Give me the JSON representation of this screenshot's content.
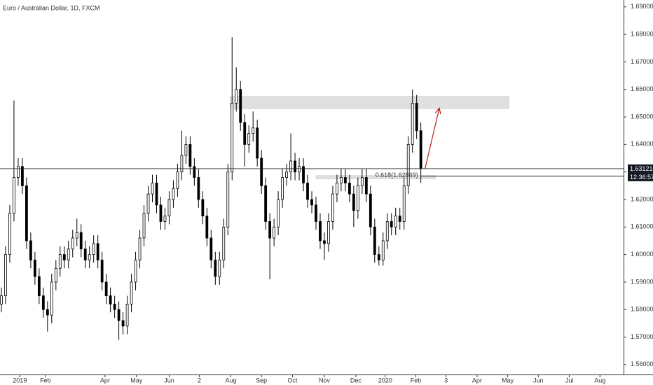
{
  "chart_data": {
    "type": "candlestick",
    "title": "Euro / Australian Dollar, 1D, FXCM",
    "ylim": [
      1.5564,
      1.6925
    ],
    "yticks": [
      {
        "value": 1.56,
        "label": "1.56000"
      },
      {
        "value": 1.57,
        "label": "1.57000"
      },
      {
        "value": 1.58,
        "label": "1.58000"
      },
      {
        "value": 1.59,
        "label": "1.59000"
      },
      {
        "value": 1.6,
        "label": "1.60000"
      },
      {
        "value": 1.61,
        "label": "1.61000"
      },
      {
        "value": 1.62,
        "label": "1.62000"
      },
      {
        "value": 1.63,
        "label": "1.63000"
      },
      {
        "value": 1.64,
        "label": "1.64000"
      },
      {
        "value": 1.65,
        "label": "1.65000"
      },
      {
        "value": 1.66,
        "label": "1.66000"
      },
      {
        "value": 1.67,
        "label": "1.67000"
      },
      {
        "value": 1.68,
        "label": "1.68000"
      },
      {
        "value": 1.69,
        "label": "1.69000"
      }
    ],
    "xlim": [
      -0.33,
      148.33
    ],
    "xticks": [
      {
        "value": 4.4,
        "label": "2019"
      },
      {
        "value": 10.5,
        "label": "Feb"
      },
      {
        "value": 24.7,
        "label": "Apr"
      },
      {
        "value": 32.2,
        "label": "May"
      },
      {
        "value": 40,
        "label": "Jun"
      },
      {
        "value": 47.2,
        "label": "2"
      },
      {
        "value": 54.7,
        "label": "Aug"
      },
      {
        "value": 62,
        "label": "Sep"
      },
      {
        "value": 69.4,
        "label": "Oct"
      },
      {
        "value": 77,
        "label": "Nov"
      },
      {
        "value": 84.5,
        "label": "Dec"
      },
      {
        "value": 91.5,
        "label": "2020"
      },
      {
        "value": 98.8,
        "label": "Feb"
      },
      {
        "value": 106,
        "label": "3"
      },
      {
        "value": 113.4,
        "label": "Apr"
      },
      {
        "value": 120.7,
        "label": "May"
      },
      {
        "value": 128,
        "label": "Jun"
      },
      {
        "value": 135.4,
        "label": "Jul"
      },
      {
        "value": 142.7,
        "label": "Aug"
      }
    ],
    "series": {
      "open": [
        1.582,
        1.585,
        1.6,
        1.615,
        1.628,
        1.632,
        1.625,
        1.605,
        1.598,
        1.592,
        1.585,
        1.58,
        1.578,
        1.59,
        1.595,
        1.6,
        1.598,
        1.602,
        1.606,
        1.608,
        1.602,
        1.598,
        1.6,
        1.604,
        1.598,
        1.59,
        1.585,
        1.582,
        1.58,
        1.576,
        1.574,
        1.582,
        1.59,
        1.598,
        1.606,
        1.615,
        1.622,
        1.626,
        1.618,
        1.612,
        1.614,
        1.62,
        1.624,
        1.63,
        1.636,
        1.64,
        1.632,
        1.628,
        1.62,
        1.614,
        1.606,
        1.598,
        1.592,
        1.598,
        1.61,
        1.63,
        1.655,
        1.66,
        1.648,
        1.64,
        1.644,
        1.646,
        1.635,
        1.625,
        1.612,
        1.606,
        1.61,
        1.62,
        1.628,
        1.63,
        1.634,
        1.63,
        1.632,
        1.626,
        1.62,
        1.618,
        1.612,
        1.605,
        1.604,
        1.612,
        1.622,
        1.626,
        1.628,
        1.626,
        1.622,
        1.616,
        1.625,
        1.628,
        1.622,
        1.61,
        1.6,
        1.598,
        1.605,
        1.612,
        1.61,
        1.614,
        1.612,
        1.625,
        1.64,
        1.655,
        1.645
      ],
      "high": [
        1.588,
        1.603,
        1.618,
        1.656,
        1.635,
        1.635,
        1.628,
        1.608,
        1.601,
        1.595,
        1.588,
        1.583,
        1.593,
        1.598,
        1.603,
        1.603,
        1.605,
        1.609,
        1.613,
        1.611,
        1.605,
        1.603,
        1.607,
        1.607,
        1.601,
        1.593,
        1.588,
        1.585,
        1.583,
        1.579,
        1.585,
        1.593,
        1.601,
        1.609,
        1.618,
        1.625,
        1.629,
        1.629,
        1.621,
        1.617,
        1.623,
        1.627,
        1.633,
        1.645,
        1.643,
        1.643,
        1.635,
        1.631,
        1.623,
        1.617,
        1.609,
        1.601,
        1.601,
        1.613,
        1.633,
        1.679,
        1.668,
        1.663,
        1.651,
        1.647,
        1.652,
        1.649,
        1.638,
        1.628,
        1.615,
        1.613,
        1.623,
        1.631,
        1.633,
        1.644,
        1.637,
        1.635,
        1.635,
        1.629,
        1.623,
        1.621,
        1.615,
        1.608,
        1.615,
        1.625,
        1.629,
        1.631,
        1.631,
        1.629,
        1.625,
        1.628,
        1.631,
        1.631,
        1.625,
        1.613,
        1.603,
        1.608,
        1.615,
        1.615,
        1.617,
        1.617,
        1.628,
        1.643,
        1.66,
        1.658,
        1.648
      ],
      "low": [
        1.579,
        1.582,
        1.597,
        1.612,
        1.625,
        1.622,
        1.602,
        1.595,
        1.589,
        1.582,
        1.577,
        1.572,
        1.575,
        1.587,
        1.592,
        1.595,
        1.595,
        1.599,
        1.603,
        1.599,
        1.595,
        1.595,
        1.597,
        1.595,
        1.587,
        1.582,
        1.579,
        1.577,
        1.569,
        1.571,
        1.571,
        1.579,
        1.587,
        1.595,
        1.603,
        1.612,
        1.619,
        1.615,
        1.609,
        1.609,
        1.611,
        1.617,
        1.621,
        1.627,
        1.633,
        1.629,
        1.625,
        1.617,
        1.611,
        1.603,
        1.595,
        1.589,
        1.589,
        1.595,
        1.607,
        1.627,
        1.652,
        1.645,
        1.632,
        1.637,
        1.641,
        1.632,
        1.622,
        1.609,
        1.591,
        1.603,
        1.607,
        1.617,
        1.625,
        1.627,
        1.627,
        1.627,
        1.623,
        1.617,
        1.615,
        1.609,
        1.602,
        1.598,
        1.601,
        1.609,
        1.619,
        1.623,
        1.623,
        1.619,
        1.61,
        1.613,
        1.622,
        1.619,
        1.607,
        1.597,
        1.596,
        1.596,
        1.602,
        1.607,
        1.607,
        1.609,
        1.609,
        1.622,
        1.637,
        1.642,
        1.626
      ],
      "close": [
        1.585,
        1.6,
        1.615,
        1.628,
        1.632,
        1.625,
        1.605,
        1.598,
        1.592,
        1.585,
        1.58,
        1.578,
        1.59,
        1.595,
        1.6,
        1.598,
        1.602,
        1.606,
        1.608,
        1.602,
        1.598,
        1.6,
        1.604,
        1.598,
        1.59,
        1.585,
        1.582,
        1.58,
        1.576,
        1.574,
        1.582,
        1.59,
        1.598,
        1.606,
        1.615,
        1.622,
        1.626,
        1.618,
        1.612,
        1.614,
        1.62,
        1.624,
        1.63,
        1.636,
        1.64,
        1.632,
        1.628,
        1.62,
        1.614,
        1.606,
        1.598,
        1.592,
        1.598,
        1.61,
        1.63,
        1.655,
        1.66,
        1.648,
        1.64,
        1.644,
        1.646,
        1.635,
        1.625,
        1.612,
        1.606,
        1.61,
        1.62,
        1.628,
        1.63,
        1.634,
        1.63,
        1.632,
        1.626,
        1.62,
        1.618,
        1.612,
        1.605,
        1.604,
        1.612,
        1.622,
        1.626,
        1.628,
        1.626,
        1.622,
        1.616,
        1.625,
        1.628,
        1.622,
        1.61,
        1.6,
        1.598,
        1.605,
        1.612,
        1.61,
        1.614,
        1.612,
        1.625,
        1.64,
        1.655,
        1.645,
        1.6312
      ]
    },
    "up_color": "#ffffff",
    "down_color": "#000000",
    "last_price": 1.63121,
    "countdown": "12:36:57",
    "fib": {
      "label": "0.618(1.62849)",
      "level": 1.62849
    },
    "zones": [
      {
        "x": [
          54.5,
          121
        ],
        "y": [
          1.653,
          1.6575
        ],
        "color": "#e0e0e0"
      },
      {
        "x": [
          75,
          103.5
        ],
        "y": [
          1.6275,
          1.6287
        ],
        "color": "#e0e0e0"
      }
    ],
    "arrow": {
      "x": [
        101,
        104.4
      ],
      "y": [
        1.6312,
        1.6532
      ],
      "color": "#b71c1c"
    }
  }
}
